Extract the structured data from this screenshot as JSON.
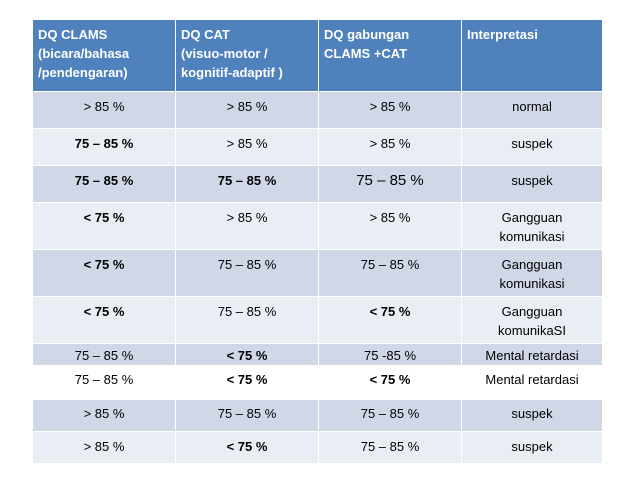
{
  "headers": [
    [
      "DQ  CLAMS",
      "(bicara/bahasa",
      "/pendengaran)"
    ],
    [
      "DQ  CAT",
      "(visuo-motor /",
      "kognitif-adaptif )"
    ],
    [
      "DQ gabungan",
      "CLAMS +CAT"
    ],
    [
      "Interpretasi"
    ]
  ],
  "rows": [
    [
      "> 85 %",
      ">  85 %",
      "> 85 %",
      "normal"
    ],
    [
      "75 – 85 %",
      "> 85 %",
      "> 85 %",
      "suspek"
    ],
    [
      "75 – 85 %",
      "75 – 85 %",
      "75 – 85 %",
      "suspek"
    ],
    [
      "< 75 %",
      "> 85 %",
      "> 85 %",
      "Gangguan\nkomunikasi"
    ],
    [
      "< 75 %",
      "75 – 85 %",
      "75 – 85 %",
      "Gangguan\nkomunikasi"
    ],
    [
      "< 75 %",
      "75 – 85 %",
      "< 75 %",
      "Gangguan\nkomunikaSI"
    ],
    [
      "75 – 85 %",
      "< 75 %",
      "75 -85 %",
      "Mental retardasi"
    ],
    [
      "75 – 85 %",
      "< 75 %",
      "< 75 %",
      "Mental retardasi"
    ],
    [
      "> 85 %",
      "75 – 85 %",
      "75 – 85 %",
      "suspek"
    ],
    [
      "> 85 %",
      "< 75 %",
      "75 – 85 %",
      "suspek"
    ]
  ]
}
